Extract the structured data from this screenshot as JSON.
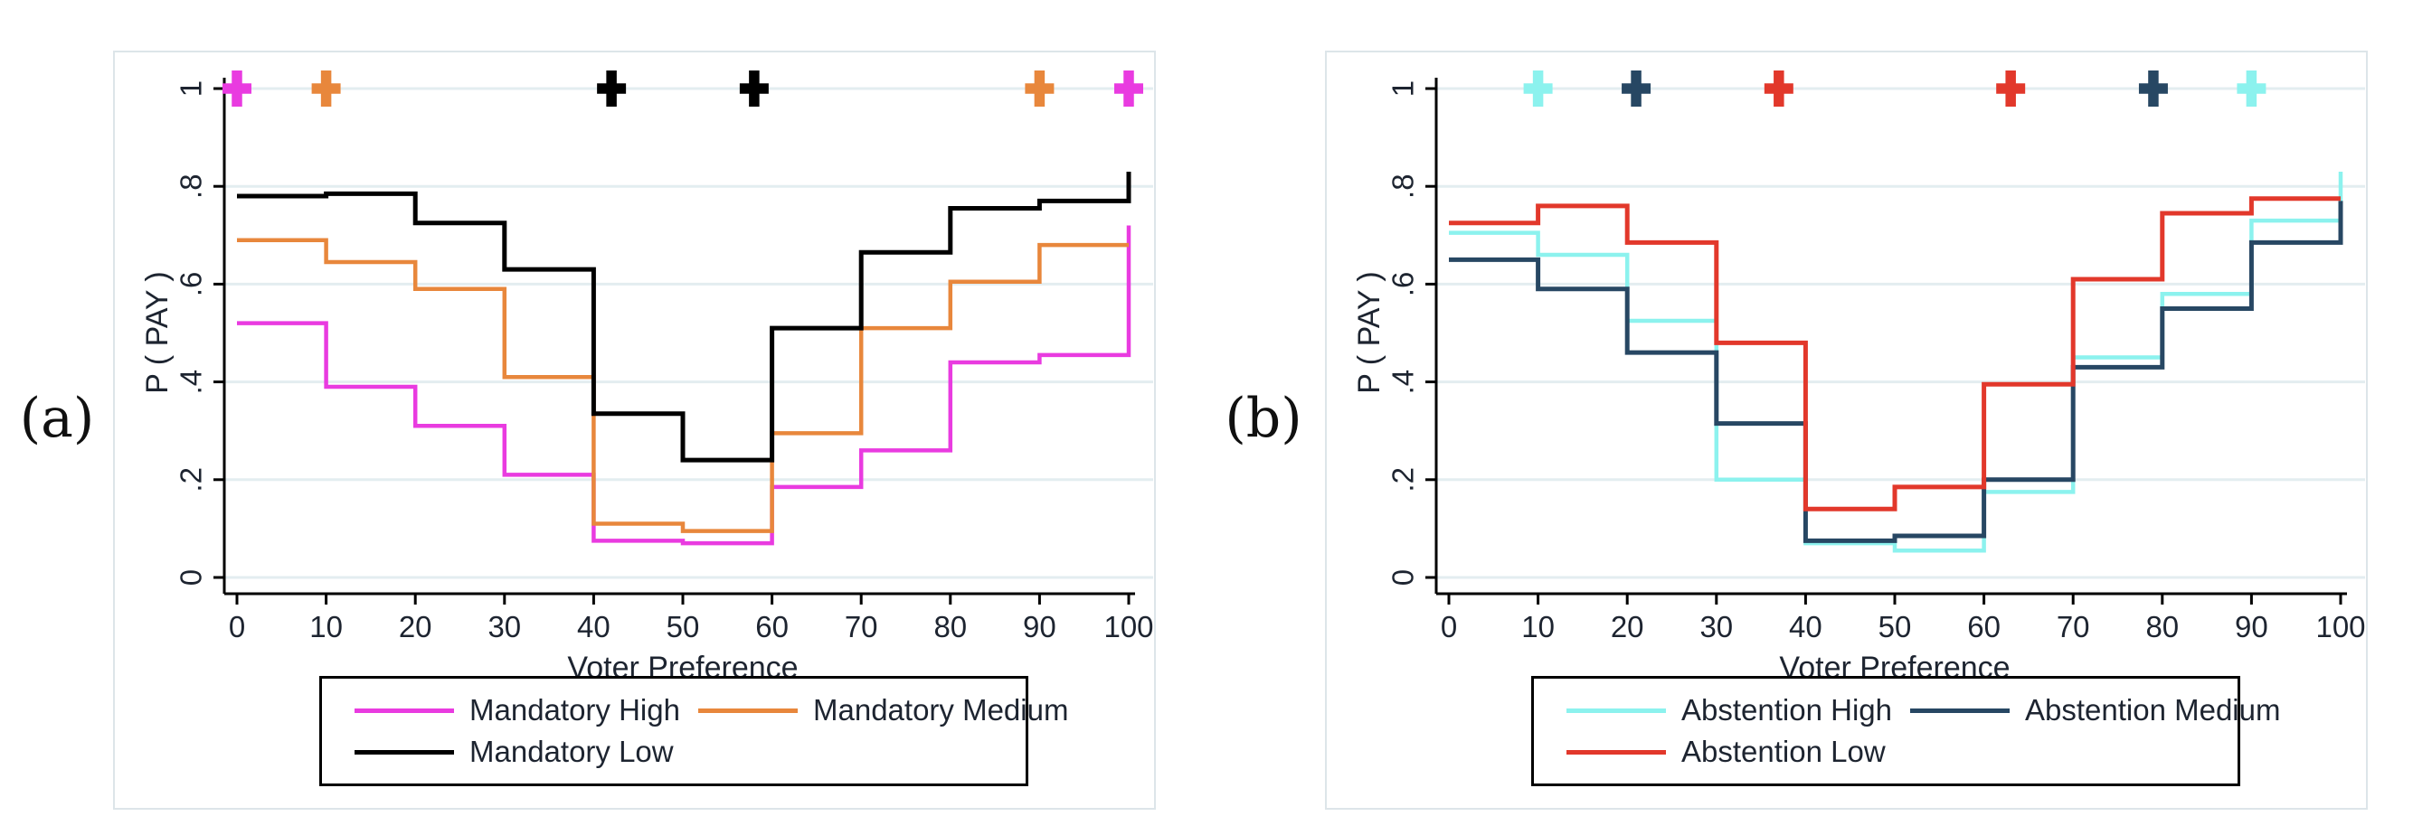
{
  "figure": {
    "background": "#ffffff",
    "grid_color": "#e3edf0",
    "axis_color": "#000000",
    "text_color": "#1d2430",
    "panel_border_color": "#dde5e9"
  },
  "chart_data": [
    {
      "type": "line",
      "subtype": "step-post",
      "panel_label": "(a)",
      "title": "",
      "xlabel": "Voter Preference",
      "ylabel": "P ( PAY )",
      "xlim": [
        0,
        100
      ],
      "ylim": [
        0,
        1
      ],
      "grid": true,
      "legend_position": "below",
      "x": [
        0,
        10,
        20,
        30,
        40,
        50,
        60,
        70,
        80,
        90,
        100
      ],
      "x_ticks": [
        {
          "label": "0",
          "value": 0
        },
        {
          "label": "10",
          "value": 10
        },
        {
          "label": "20",
          "value": 20
        },
        {
          "label": "30",
          "value": 30
        },
        {
          "label": "40",
          "value": 40
        },
        {
          "label": "50",
          "value": 50
        },
        {
          "label": "60",
          "value": 60
        },
        {
          "label": "70",
          "value": 70
        },
        {
          "label": "80",
          "value": 80
        },
        {
          "label": "90",
          "value": 90
        },
        {
          "label": "100",
          "value": 100
        }
      ],
      "y_ticks": [
        {
          "label": "0",
          "value": 0
        },
        {
          "label": ".2",
          "value": 0.2
        },
        {
          "label": ".4",
          "value": 0.4
        },
        {
          "label": ".6",
          "value": 0.6
        },
        {
          "label": ".8",
          "value": 0.8
        },
        {
          "label": "1",
          "value": 1
        }
      ],
      "series": [
        {
          "name": "Mandatory High",
          "color": "#e93be0",
          "width": 4.5,
          "values": [
            0.52,
            0.39,
            0.31,
            0.21,
            0.075,
            0.07,
            0.185,
            0.26,
            0.44,
            0.455,
            0.72
          ]
        },
        {
          "name": "Mandatory Medium",
          "color": "#e8873c",
          "width": 4.5,
          "values": [
            0.69,
            0.645,
            0.59,
            0.41,
            0.11,
            0.095,
            0.295,
            0.51,
            0.605,
            0.68,
            0.68
          ]
        },
        {
          "name": "Mandatory Low",
          "color": "#000000",
          "width": 5,
          "values": [
            0.78,
            0.785,
            0.725,
            0.63,
            0.335,
            0.24,
            0.51,
            0.665,
            0.755,
            0.77,
            0.83
          ]
        }
      ],
      "top_markers": [
        {
          "x": 0,
          "y": 1,
          "shape": "plus",
          "color": "#e93be0"
        },
        {
          "x": 10,
          "y": 1,
          "shape": "plus",
          "color": "#e8873c"
        },
        {
          "x": 42,
          "y": 1,
          "shape": "plus",
          "color": "#000000"
        },
        {
          "x": 58,
          "y": 1,
          "shape": "plus",
          "color": "#000000"
        },
        {
          "x": 90,
          "y": 1,
          "shape": "plus",
          "color": "#e8873c"
        },
        {
          "x": 100,
          "y": 1,
          "shape": "plus",
          "color": "#e93be0"
        }
      ]
    },
    {
      "type": "line",
      "subtype": "step-post",
      "panel_label": "(b)",
      "title": "",
      "xlabel": "Voter Preference",
      "ylabel": "P ( PAY )",
      "xlim": [
        0,
        100
      ],
      "ylim": [
        0,
        1
      ],
      "grid": true,
      "legend_position": "below",
      "x": [
        0,
        10,
        20,
        30,
        40,
        50,
        60,
        70,
        80,
        90,
        100
      ],
      "x_ticks": [
        {
          "label": "0",
          "value": 0
        },
        {
          "label": "10",
          "value": 10
        },
        {
          "label": "20",
          "value": 20
        },
        {
          "label": "30",
          "value": 30
        },
        {
          "label": "40",
          "value": 40
        },
        {
          "label": "50",
          "value": 50
        },
        {
          "label": "60",
          "value": 60
        },
        {
          "label": "70",
          "value": 70
        },
        {
          "label": "80",
          "value": 80
        },
        {
          "label": "90",
          "value": 90
        },
        {
          "label": "100",
          "value": 100
        }
      ],
      "y_ticks": [
        {
          "label": "0",
          "value": 0
        },
        {
          "label": ".2",
          "value": 0.2
        },
        {
          "label": ".4",
          "value": 0.4
        },
        {
          "label": ".6",
          "value": 0.6
        },
        {
          "label": ".8",
          "value": 0.8
        },
        {
          "label": "1",
          "value": 1
        }
      ],
      "series": [
        {
          "name": "Abstention High",
          "color": "#8cf2ee",
          "width": 4.5,
          "values": [
            0.705,
            0.66,
            0.525,
            0.2,
            0.07,
            0.055,
            0.175,
            0.45,
            0.58,
            0.73,
            0.83
          ]
        },
        {
          "name": "Abstention Medium",
          "color": "#274763",
          "width": 5,
          "values": [
            0.65,
            0.59,
            0.46,
            0.315,
            0.075,
            0.085,
            0.2,
            0.43,
            0.55,
            0.685,
            0.77
          ]
        },
        {
          "name": "Abstention Low",
          "color": "#e2382b",
          "width": 5,
          "values": [
            0.725,
            0.76,
            0.685,
            0.48,
            0.14,
            0.185,
            0.395,
            0.61,
            0.745,
            0.775,
            0.775
          ]
        }
      ],
      "top_markers": [
        {
          "x": 10,
          "y": 1,
          "shape": "plus",
          "color": "#8cf2ee"
        },
        {
          "x": 21,
          "y": 1,
          "shape": "plus",
          "color": "#274763"
        },
        {
          "x": 37,
          "y": 1,
          "shape": "plus",
          "color": "#e2382b"
        },
        {
          "x": 63,
          "y": 1,
          "shape": "plus",
          "color": "#e2382b"
        },
        {
          "x": 79,
          "y": 1,
          "shape": "plus",
          "color": "#274763"
        },
        {
          "x": 90,
          "y": 1,
          "shape": "plus",
          "color": "#8cf2ee"
        }
      ]
    }
  ]
}
